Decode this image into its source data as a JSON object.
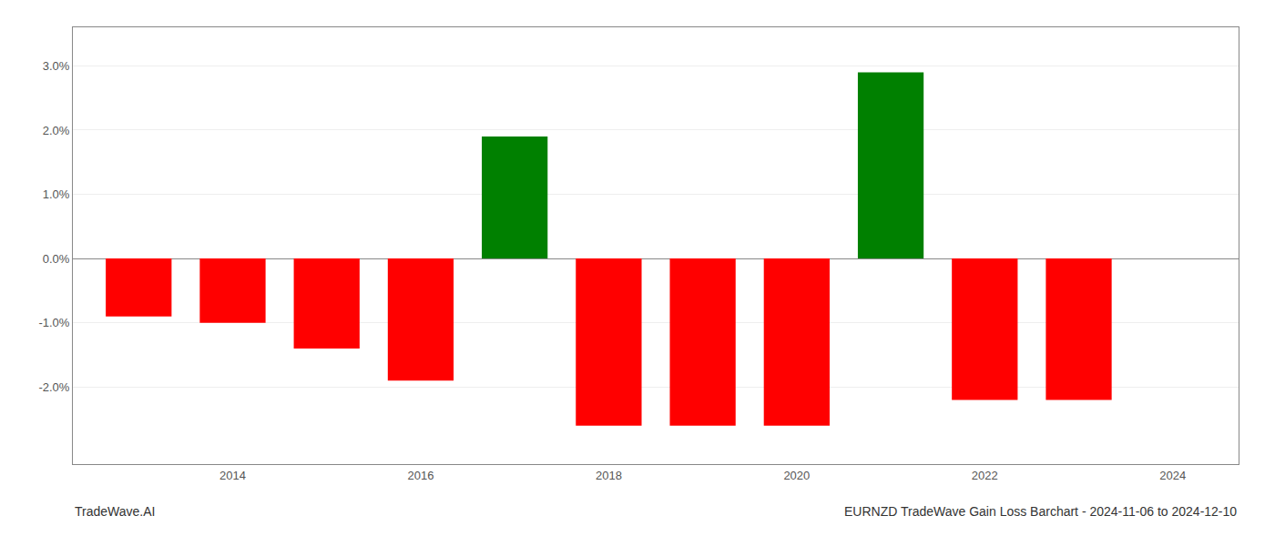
{
  "chart_data": {
    "type": "bar",
    "title": "EURNZD TradeWave Gain Loss Barchart - 2024-11-06 to 2024-12-10",
    "annotations": [
      "TradeWave.AI"
    ],
    "x": [
      2013,
      2014,
      2015,
      2016,
      2017,
      2018,
      2019,
      2020,
      2021,
      2022,
      2023
    ],
    "values": [
      -0.009,
      -0.01,
      -0.014,
      -0.019,
      0.019,
      -0.026,
      -0.026,
      -0.026,
      0.029,
      -0.022,
      -0.022
    ],
    "colors": [
      "#ff0000",
      "#ff0000",
      "#ff0000",
      "#ff0000",
      "#008000",
      "#ff0000",
      "#ff0000",
      "#ff0000",
      "#008000",
      "#ff0000",
      "#ff0000"
    ],
    "xlim": [
      2012.3,
      2024.7
    ],
    "xticks": [
      2014,
      2016,
      2018,
      2020,
      2022,
      2024
    ],
    "ylim": [
      -0.032,
      0.036
    ],
    "yticks": [
      {
        "value": -0.02,
        "label": "-2.0%"
      },
      {
        "value": -0.01,
        "label": "-1.0%"
      },
      {
        "value": 0.0,
        "label": "0.0%"
      },
      {
        "value": 0.01,
        "label": "1.0%"
      },
      {
        "value": 0.02,
        "label": "2.0%"
      },
      {
        "value": 0.03,
        "label": "3.0%"
      }
    ],
    "grid": true
  }
}
